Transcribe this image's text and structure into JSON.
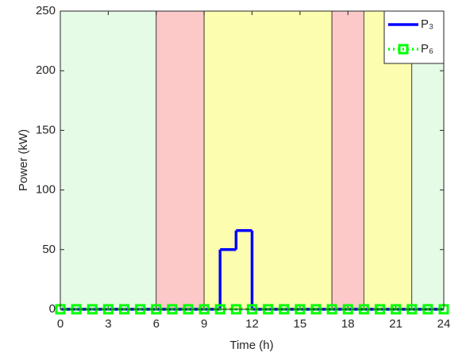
{
  "chart_data": {
    "type": "line",
    "drawstyle": "steps-post",
    "x_label": "Time (h)",
    "y_label": "Power (kW)",
    "x": [
      0,
      1,
      2,
      3,
      4,
      5,
      6,
      7,
      8,
      9,
      10,
      11,
      12,
      13,
      14,
      15,
      16,
      17,
      18,
      19,
      20,
      21,
      22,
      23,
      24
    ],
    "series": [
      {
        "name": "P₃",
        "color": "#0000ff",
        "linestyle": "solid",
        "marker": "none",
        "values": [
          0,
          0,
          0,
          0,
          0,
          0,
          0,
          0,
          0,
          0,
          50,
          66,
          0,
          0,
          0,
          0,
          0,
          0,
          0,
          0,
          0,
          0,
          0,
          0,
          0
        ]
      },
      {
        "name": "P₆",
        "color": "#00ff00",
        "linestyle": "dotted",
        "marker": "square",
        "values": [
          0,
          0,
          0,
          0,
          0,
          0,
          0,
          0,
          0,
          0,
          0,
          0,
          0,
          0,
          0,
          0,
          0,
          0,
          0,
          0,
          0,
          0,
          0,
          0,
          0
        ]
      }
    ],
    "regions": [
      {
        "x0": 0,
        "x1": 6,
        "color": "#e6fbe6"
      },
      {
        "x0": 6,
        "x1": 9,
        "color": "#fcc8c8"
      },
      {
        "x0": 9,
        "x1": 17,
        "color": "#fdfdb0"
      },
      {
        "x0": 17,
        "x1": 19,
        "color": "#fcc8c8"
      },
      {
        "x0": 19,
        "x1": 22,
        "color": "#fdfdb0"
      },
      {
        "x0": 22,
        "x1": 24,
        "color": "#e6fbe6"
      }
    ],
    "xlim": [
      0,
      24
    ],
    "xticks": [
      0,
      3,
      6,
      9,
      12,
      15,
      18,
      21,
      24
    ],
    "ylim": [
      0,
      250
    ],
    "yticks": [
      0,
      50,
      100,
      150,
      200,
      250
    ],
    "legend": "upper-right"
  }
}
